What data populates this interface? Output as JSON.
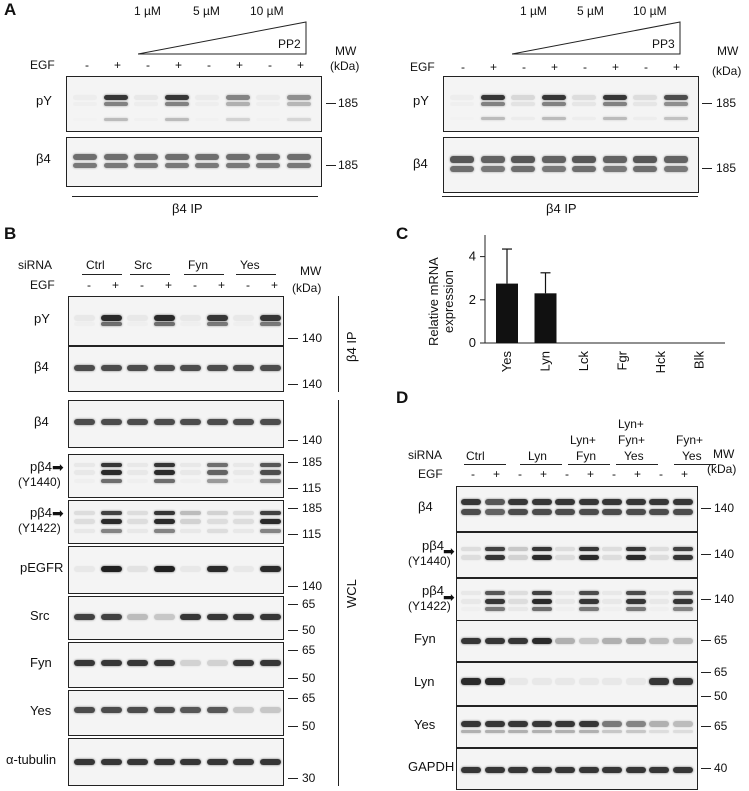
{
  "panelA": {
    "letter": "A",
    "left": {
      "conc": [
        "1 µM",
        "5 µM",
        "10 µM"
      ],
      "drug": "PP2",
      "egf_label": "EGF",
      "signs": [
        "-",
        "+",
        "-",
        "+",
        "-",
        "+",
        "-",
        "+"
      ],
      "mw_label": "MW",
      "mw_unit": "(kDa)",
      "rows": [
        {
          "label": "pY",
          "mw": "185"
        },
        {
          "label": "β4",
          "mw": "185"
        }
      ],
      "ip_label": "β4 IP"
    },
    "right": {
      "conc": [
        "1 µM",
        "5 µM",
        "10 µM"
      ],
      "drug": "PP3",
      "egf_label": "EGF",
      "signs": [
        "-",
        "+",
        "-",
        "+",
        "-",
        "+",
        "-",
        "+"
      ],
      "mw_label": "MW",
      "mw_unit": "(kDa)",
      "rows": [
        {
          "label": "pY",
          "mw": "185"
        },
        {
          "label": "β4",
          "mw": "185"
        }
      ],
      "ip_label": "β4 IP"
    }
  },
  "panelB": {
    "letter": "B",
    "sirna_label": "siRNA",
    "groups": [
      "Ctrl",
      "Src",
      "Fyn",
      "Yes"
    ],
    "egf_label": "EGF",
    "signs": [
      "-",
      "+",
      "-",
      "+",
      "-",
      "+",
      "-",
      "+"
    ],
    "mw_label": "MW",
    "mw_unit": "(kDa)",
    "ip_section": "β4 IP",
    "wcl_section": "WCL",
    "rows": [
      {
        "label": "pY",
        "mw": [
          "140"
        ]
      },
      {
        "label": "β4",
        "mw": [
          "140"
        ]
      },
      {
        "label": "β4",
        "mw": [
          "140"
        ]
      },
      {
        "label": "pβ4",
        "label2": "(Y1440)",
        "mw": [
          "185",
          "115"
        ]
      },
      {
        "label": "pβ4",
        "label2": "(Y1422)",
        "mw": [
          "185",
          "115"
        ]
      },
      {
        "label": "pEGFR",
        "mw": [
          "140"
        ]
      },
      {
        "label": "Src",
        "mw": [
          "65",
          "50"
        ]
      },
      {
        "label": "Fyn",
        "mw": [
          "65",
          "50"
        ]
      },
      {
        "label": "Yes",
        "mw": [
          "65",
          "50"
        ]
      },
      {
        "label": "α-tubulin",
        "mw": [
          "30"
        ]
      }
    ]
  },
  "panelC": {
    "letter": "C",
    "chart_data": {
      "type": "bar",
      "categories": [
        "Yes",
        "Lyn",
        "Lck",
        "Fgr",
        "Hck",
        "Blk"
      ],
      "values": [
        2.75,
        2.3,
        0,
        0,
        0,
        0
      ],
      "errors": [
        1.6,
        0.95,
        0,
        0,
        0,
        0
      ],
      "ylabel": "Relative mRNA expression",
      "ylabel_lines": [
        "Relative mRNA",
        "expression"
      ],
      "yticks": [
        "0",
        "2",
        "4"
      ],
      "ylim": [
        0,
        5
      ],
      "bar_color": "#111111"
    }
  },
  "panelD": {
    "letter": "D",
    "sirna_label": "siRNA",
    "groups": [
      {
        "lines": [
          "Ctrl"
        ]
      },
      {
        "lines": [
          "Lyn"
        ]
      },
      {
        "lines": [
          "Lyn+",
          "Fyn"
        ]
      },
      {
        "lines": [
          "Lyn+",
          "Fyn+",
          "Yes"
        ]
      },
      {
        "lines": [
          "Fyn+",
          "Yes"
        ]
      }
    ],
    "egf_label": "EGF",
    "signs": [
      "-",
      "+",
      "-",
      "+",
      "-",
      "+",
      "-",
      "+",
      "-",
      "+"
    ],
    "mw_label": "MW",
    "mw_unit": "(kDa)",
    "rows": [
      {
        "label": "β4",
        "mw": [
          "140"
        ]
      },
      {
        "label": "pβ4",
        "label2": "(Y1440)",
        "mw": [
          "140"
        ]
      },
      {
        "label": "pβ4",
        "label2": "(Y1422)",
        "mw": [
          "140"
        ]
      },
      {
        "label": "Fyn",
        "mw": [
          "65"
        ]
      },
      {
        "label": "Lyn",
        "mw": [
          "65",
          "50"
        ]
      },
      {
        "label": "Yes",
        "mw": [
          "65"
        ]
      },
      {
        "label": "GAPDH",
        "mw": [
          "40"
        ]
      }
    ]
  }
}
